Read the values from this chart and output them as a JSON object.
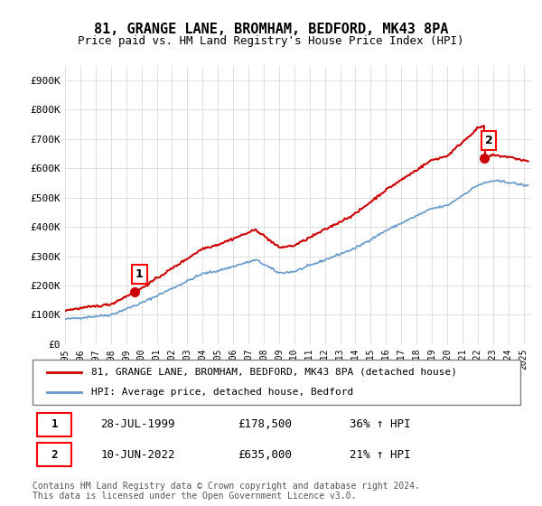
{
  "title": "81, GRANGE LANE, BROMHAM, BEDFORD, MK43 8PA",
  "subtitle": "Price paid vs. HM Land Registry's House Price Index (HPI)",
  "ylabel_ticks": [
    "£0",
    "£100K",
    "£200K",
    "£300K",
    "£400K",
    "£500K",
    "£600K",
    "£700K",
    "£800K",
    "£900K"
  ],
  "ytick_values": [
    0,
    100000,
    200000,
    300000,
    400000,
    500000,
    600000,
    700000,
    800000,
    900000
  ],
  "ylim": [
    0,
    950000
  ],
  "xlim_start": 1995.0,
  "xlim_end": 2025.5,
  "hpi_color": "#6699cc",
  "price_color": "#cc0000",
  "point1_date": "28-JUL-1999",
  "point1_price": 178500,
  "point1_hpi_pct": "36%",
  "point1_year": 1999.57,
  "point2_date": "10-JUN-2022",
  "point2_price": 635000,
  "point2_hpi_pct": "21%",
  "point2_year": 2022.44,
  "legend_label_price": "81, GRANGE LANE, BROMHAM, BEDFORD, MK43 8PA (detached house)",
  "legend_label_hpi": "HPI: Average price, detached house, Bedford",
  "footnote": "Contains HM Land Registry data © Crown copyright and database right 2024.\nThis data is licensed under the Open Government Licence v3.0.",
  "transaction_rows": [
    {
      "num": "1",
      "date": "28-JUL-1999",
      "price": "£178,500",
      "change": "36% ↑ HPI"
    },
    {
      "num": "2",
      "date": "10-JUN-2022",
      "price": "£635,000",
      "change": "21% ↑ HPI"
    }
  ]
}
